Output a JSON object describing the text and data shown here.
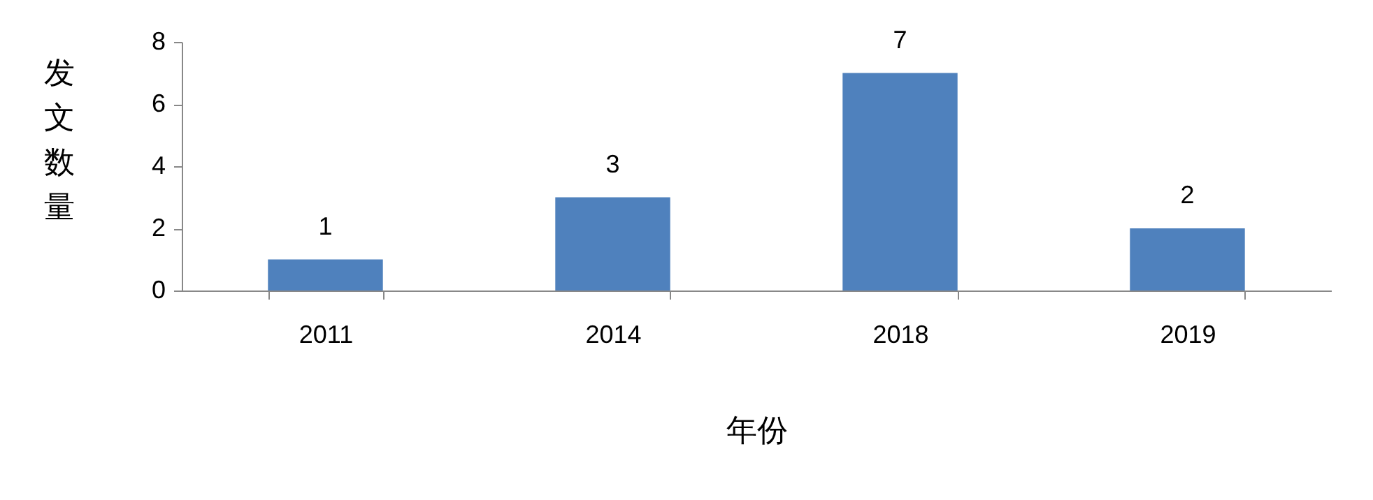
{
  "chart_data": {
    "type": "bar",
    "xlabel": "年份",
    "ylabel": "发文数量",
    "categories": [
      "2011",
      "2014",
      "2018",
      "2019"
    ],
    "values": [
      1,
      3,
      7,
      2
    ],
    "color": "#4f81bd",
    "ylim": [
      0,
      8
    ],
    "yticks": [
      0,
      2,
      4,
      6,
      8
    ],
    "grid": false,
    "data_labels": true
  }
}
